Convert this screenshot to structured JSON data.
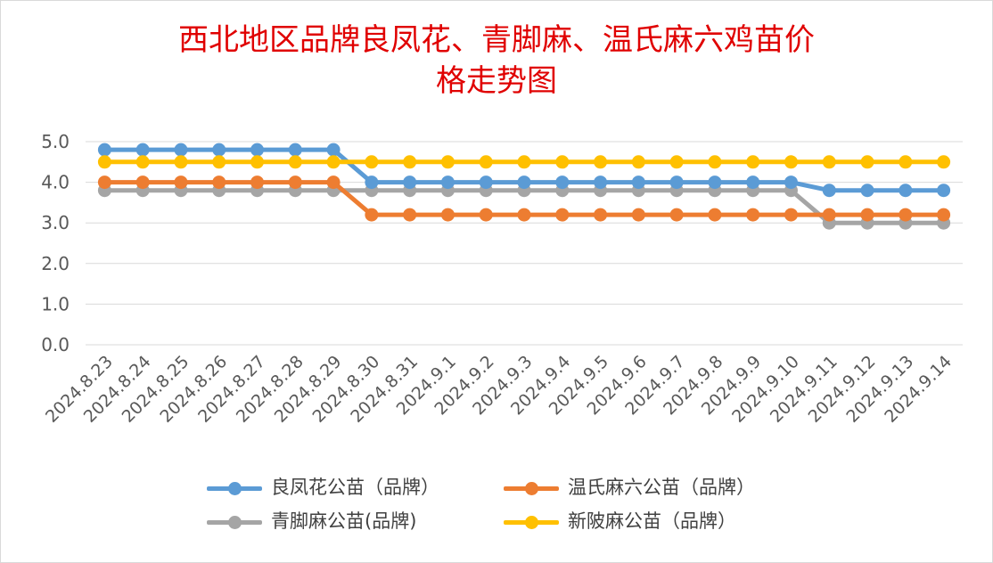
{
  "chart_data": {
    "type": "line",
    "title_lines": [
      "西北地区品牌良凤花、青脚麻、温氏麻六鸡苗价",
      "格走势图"
    ],
    "categories": [
      "2024.8.23",
      "2024.8.24",
      "2024.8.25",
      "2024.8.26",
      "2024.8.27",
      "2024.8.28",
      "2024.8.29",
      "2024.8.30",
      "2024.8.31",
      "2024.9.1",
      "2024.9.2",
      "2024.9.3",
      "2024.9.4",
      "2024.9.5",
      "2024.9.6",
      "2024.9.7",
      "2024.9.8",
      "2024.9.9",
      "2024.9.10",
      "2024.9.11",
      "2024.9.12",
      "2024.9.13",
      "2024.9.14"
    ],
    "ylim": [
      0,
      5.0
    ],
    "yticks": [
      "0.0",
      "1.0",
      "2.0",
      "3.0",
      "4.0",
      "5.0"
    ],
    "grid": true,
    "legend_position": "bottom",
    "series": [
      {
        "name": "良凤花公苗（品牌）",
        "color": "#5b9bd5",
        "values": [
          4.8,
          4.8,
          4.8,
          4.8,
          4.8,
          4.8,
          4.8,
          4.0,
          4.0,
          4.0,
          4.0,
          4.0,
          4.0,
          4.0,
          4.0,
          4.0,
          4.0,
          4.0,
          4.0,
          3.8,
          3.8,
          3.8,
          3.8
        ]
      },
      {
        "name": "温氏麻六公苗（品牌）",
        "color": "#ed7d31",
        "values": [
          4.0,
          4.0,
          4.0,
          4.0,
          4.0,
          4.0,
          4.0,
          3.2,
          3.2,
          3.2,
          3.2,
          3.2,
          3.2,
          3.2,
          3.2,
          3.2,
          3.2,
          3.2,
          3.2,
          3.2,
          3.2,
          3.2,
          3.2
        ]
      },
      {
        "name": "青脚麻公苗(品牌)",
        "color": "#a5a5a5",
        "values": [
          3.8,
          3.8,
          3.8,
          3.8,
          3.8,
          3.8,
          3.8,
          3.8,
          3.8,
          3.8,
          3.8,
          3.8,
          3.8,
          3.8,
          3.8,
          3.8,
          3.8,
          3.8,
          3.8,
          3.0,
          3.0,
          3.0,
          3.0
        ]
      },
      {
        "name": "新陂麻公苗（品牌）",
        "color": "#ffc000",
        "values": [
          4.5,
          4.5,
          4.5,
          4.5,
          4.5,
          4.5,
          4.5,
          4.5,
          4.5,
          4.5,
          4.5,
          4.5,
          4.5,
          4.5,
          4.5,
          4.5,
          4.5,
          4.5,
          4.5,
          4.5,
          4.5,
          4.5,
          4.5
        ]
      }
    ]
  }
}
